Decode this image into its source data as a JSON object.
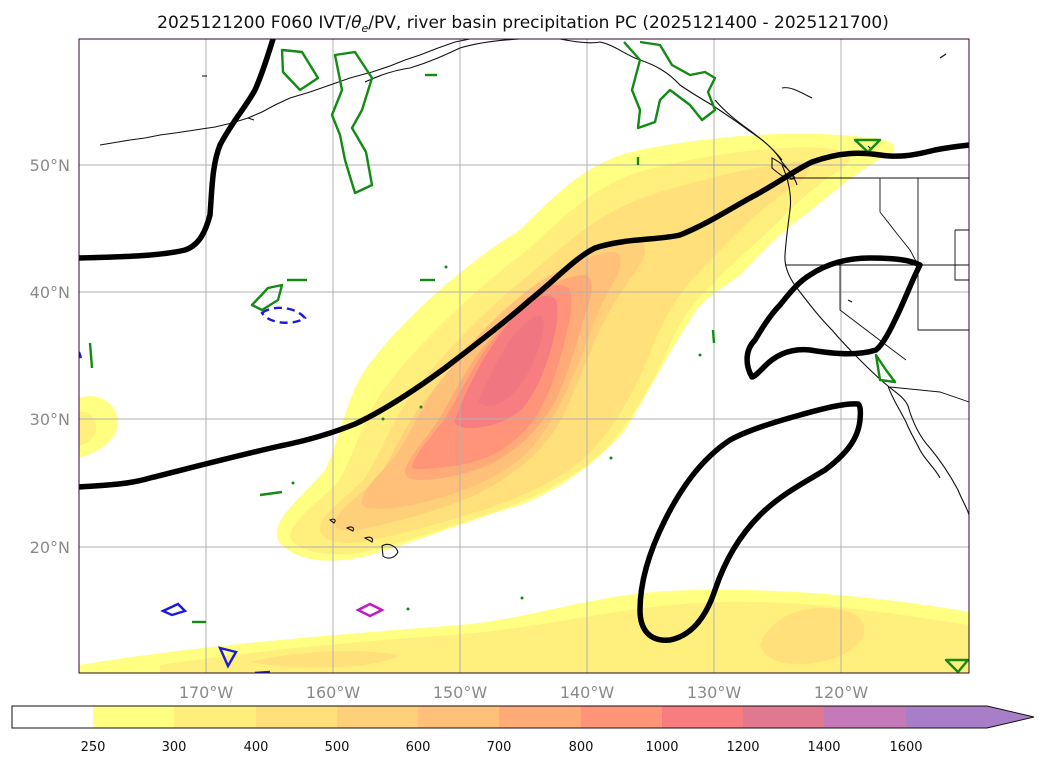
{
  "title": "2025121200 F060 IVT/θe/PV, river basin precipitation PC (2025121400 - 2025121700)",
  "title_parts": {
    "before": "2025121200 F060 IVT/",
    "theta": "θ",
    "sub": "e",
    "after": "/PV, river basin precipitation PC (2025121400 - 2025121700)"
  },
  "map": {
    "lon_range": [
      -180,
      -110
    ],
    "lat_range": [
      10,
      60
    ],
    "lat_ticks": [
      {
        "value": 50,
        "label": "50°N"
      },
      {
        "value": 40,
        "label": "40°N"
      },
      {
        "value": 30,
        "label": "30°N"
      },
      {
        "value": 20,
        "label": "20°N"
      }
    ],
    "lon_ticks": [
      {
        "value": -170,
        "label": "170°W"
      },
      {
        "value": -160,
        "label": "160°W"
      },
      {
        "value": -150,
        "label": "150°W"
      },
      {
        "value": -140,
        "label": "140°W"
      },
      {
        "value": -130,
        "label": "130°W"
      },
      {
        "value": -120,
        "label": "120°W"
      }
    ]
  },
  "colorbar": {
    "labels": [
      "250",
      "300",
      "400",
      "500",
      "600",
      "700",
      "800",
      "1000",
      "1200",
      "1400",
      "1600"
    ],
    "colors": [
      "#ffff82",
      "#fff07d",
      "#ffe07a",
      "#ffd07a",
      "#ffc07a",
      "#ffab78",
      "#ff9478",
      "#f77d80",
      "#e07890",
      "#c47ab8",
      "#a97ec8"
    ],
    "extend_color": "#a97ec8"
  },
  "chart_data": {
    "type": "map",
    "variable": "Integrated vapor transport (IVT)",
    "units_levels": [
      250,
      300,
      400,
      500,
      600,
      700,
      800,
      1000,
      1200,
      1400,
      1600
    ],
    "atmospheric_river": {
      "axis_from": [
        -167,
        21
      ],
      "axis_to": [
        -122,
        48
      ],
      "max_level_reached": 1000,
      "core_location": [
        -146,
        33
      ]
    },
    "secondary_ivt_band": {
      "lat_approx": 13,
      "lon_from": -180,
      "lon_to": -110,
      "max_level": 400
    },
    "pv_contours": [
      "Upper-left trough line from 42.5N 180W to 60N 165W",
      "Main PV line from 25N 180W through 30N 158W, 43N 139W, 48N 125W to 51.5N 110W",
      "Closed cutoff contour near 35-42N 126-115W",
      "Elongated trough contour from 31N 118W southwest to 14N 136W"
    ],
    "theta_e_contours": "small green and blue contours (precipitation PC basins) scattered over North Pacific and western North America"
  }
}
